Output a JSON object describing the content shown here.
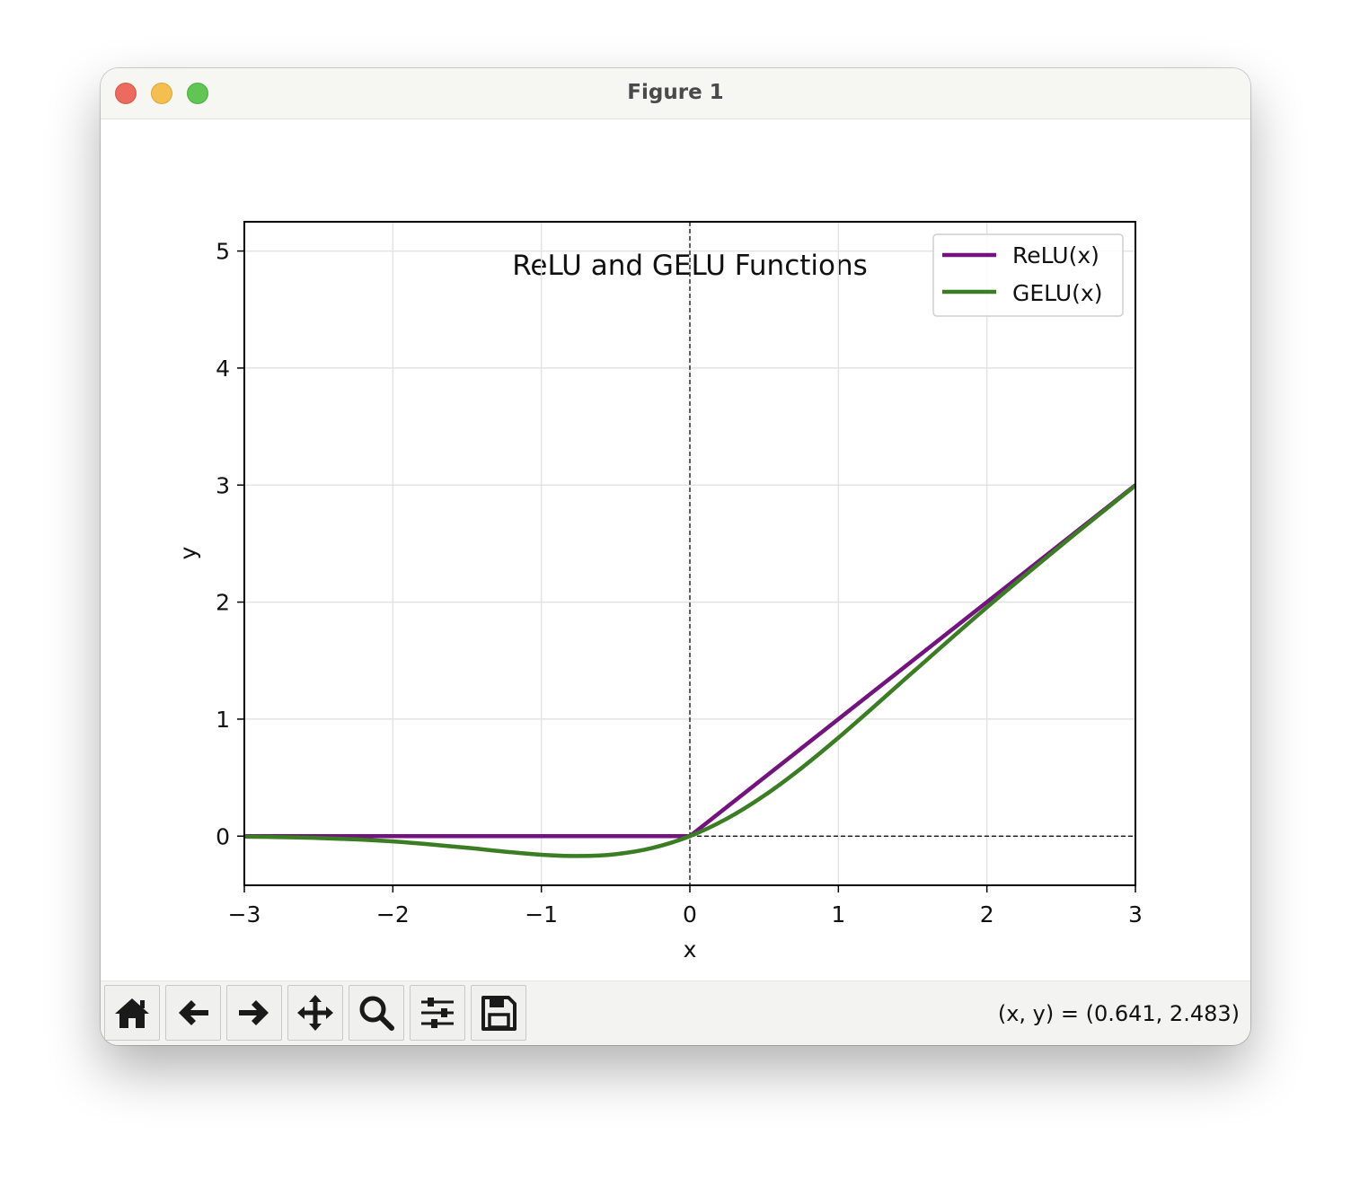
{
  "window": {
    "title": "Figure 1"
  },
  "toolbar": {
    "buttons": [
      {
        "icon": "home-icon",
        "name": "home-button"
      },
      {
        "icon": "back-arrow-icon",
        "name": "back-button"
      },
      {
        "icon": "forward-arrow-icon",
        "name": "forward-button"
      },
      {
        "icon": "pan-move-icon",
        "name": "pan-button"
      },
      {
        "icon": "zoom-magnifier-icon",
        "name": "zoom-button"
      },
      {
        "icon": "configure-subplots-icon",
        "name": "configure-subplots-button"
      },
      {
        "icon": "save-floppy-icon",
        "name": "save-button"
      }
    ],
    "coords": "(x, y) = (0.641, 2.483)"
  },
  "chart_data": {
    "type": "line",
    "title": "ReLU and GELU Functions",
    "xlabel": "x",
    "ylabel": "y",
    "xlim": [
      -3,
      3
    ],
    "ylim": [
      -0.42,
      5.25
    ],
    "xticks": [
      -3,
      -2,
      -1,
      0,
      1,
      2,
      3
    ],
    "xtick_labels": [
      "−3",
      "−2",
      "−1",
      "0",
      "1",
      "2",
      "3"
    ],
    "yticks": [
      0,
      1,
      2,
      3,
      4,
      5
    ],
    "ytick_labels": [
      "0",
      "1",
      "2",
      "3",
      "4",
      "5"
    ],
    "grid": true,
    "legend_position": "upper right",
    "reference_lines": {
      "horizontal_y": 0,
      "vertical_x": 0,
      "style": "dashed"
    },
    "series": [
      {
        "name": "ReLU(x)",
        "color": "#74137f",
        "x": [
          -3,
          0,
          3
        ],
        "y": [
          0,
          0,
          3
        ]
      },
      {
        "name": "GELU(x)",
        "color": "#3a7d22",
        "x": [
          -3,
          -2.5,
          -2,
          -1.5,
          -1.25,
          -1,
          -0.75,
          -0.5,
          -0.25,
          0,
          0.25,
          0.5,
          0.75,
          1,
          1.25,
          1.5,
          2,
          2.5,
          3
        ],
        "y": [
          -0.004,
          -0.016,
          -0.045,
          -0.1,
          -0.132,
          -0.159,
          -0.17,
          -0.154,
          -0.1,
          0,
          0.15,
          0.346,
          0.58,
          0.841,
          1.118,
          1.4,
          1.955,
          2.484,
          2.996
        ]
      }
    ]
  }
}
